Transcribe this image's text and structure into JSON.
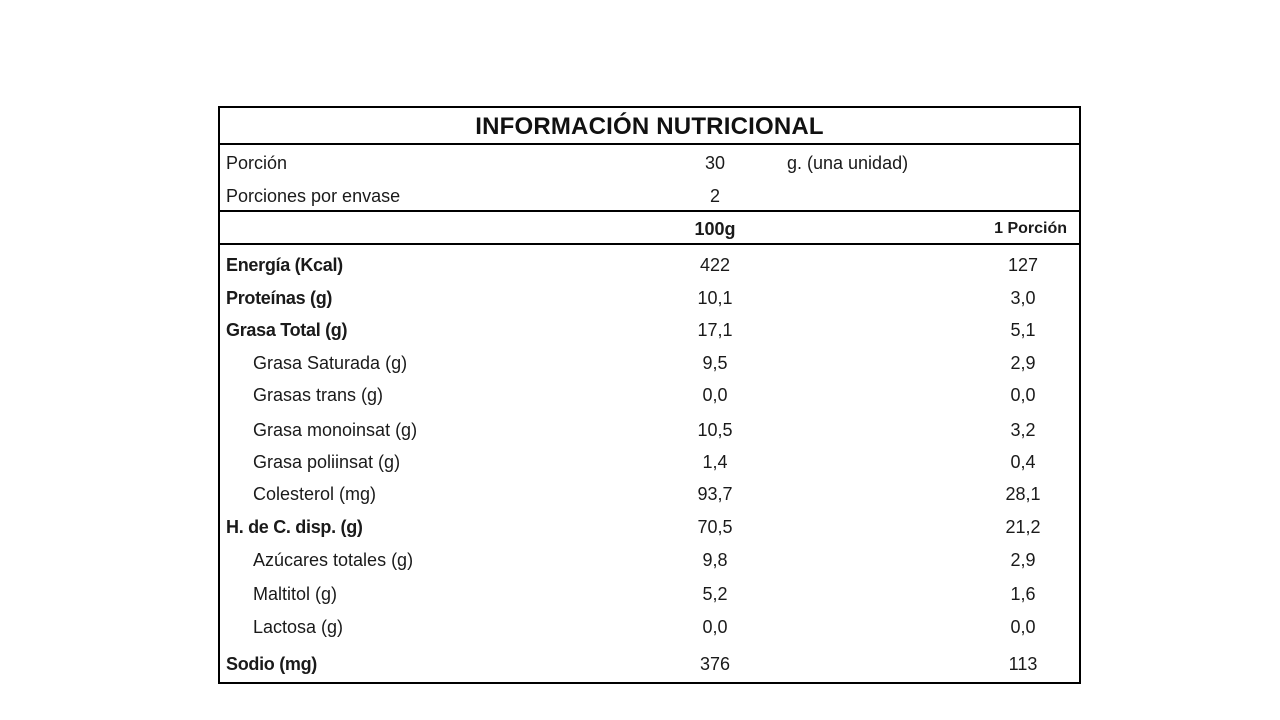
{
  "title": "INFORMACIÓN NUTRICIONAL",
  "serving": {
    "label": "Porción",
    "value": "30",
    "unit": "g. (una unidad)"
  },
  "servings_per_container": {
    "label": "Porciones por envase",
    "value": "2"
  },
  "columns": {
    "per_100g": "100g",
    "per_serving": "1 Porción"
  },
  "rows": [
    {
      "name": "Energía (Kcal)",
      "per_100g": "422",
      "per_serving": "127"
    },
    {
      "name": "Proteínas (g)",
      "per_100g": "10,1",
      "per_serving": "3,0"
    },
    {
      "name": "Grasa Total (g)",
      "per_100g": "17,1",
      "per_serving": "5,1"
    },
    {
      "name": "Grasa Saturada (g)",
      "per_100g": "9,5",
      "per_serving": "2,9"
    },
    {
      "name": "Grasas trans (g)",
      "per_100g": "0,0",
      "per_serving": "0,0"
    },
    {
      "name": "Grasa monoinsat (g)",
      "per_100g": "10,5",
      "per_serving": "3,2"
    },
    {
      "name": "Grasa poliinsat (g)",
      "per_100g": "1,4",
      "per_serving": "0,4"
    },
    {
      "name": "Colesterol (mg)",
      "per_100g": "93,7",
      "per_serving": "28,1"
    },
    {
      "name": "H. de C. disp. (g)",
      "per_100g": "70,5",
      "per_serving": "21,2"
    },
    {
      "name": "Azúcares totales (g)",
      "per_100g": "9,8",
      "per_serving": "2,9"
    },
    {
      "name": "Maltitol (g)",
      "per_100g": "5,2",
      "per_serving": "1,6"
    },
    {
      "name": "Lactosa (g)",
      "per_100g": "0,0",
      "per_serving": "0,0"
    },
    {
      "name": "Sodio (mg)",
      "per_100g": "376",
      "per_serving": "113"
    }
  ]
}
